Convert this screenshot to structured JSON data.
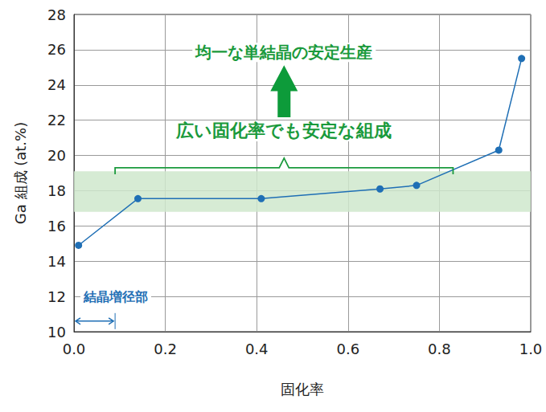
{
  "chart_data": {
    "type": "line",
    "x": [
      0.01,
      0.14,
      0.41,
      0.67,
      0.75,
      0.93,
      0.98
    ],
    "values": [
      14.9,
      17.55,
      17.55,
      18.1,
      18.3,
      20.3,
      25.5
    ],
    "color": "#1f6fb5",
    "marker": "circle",
    "xlabel": "固化率",
    "ylabel": "Ga 組成 (at.%)",
    "xlim": [
      0,
      1
    ],
    "xticks": [
      {
        "value": 0,
        "label": "0.0"
      },
      0.2,
      0.4,
      0.6,
      0.8,
      {
        "value": 1,
        "label": "1.0"
      }
    ],
    "ylim": [
      10,
      28
    ],
    "yticks": [
      10,
      12,
      14,
      16,
      18,
      20,
      22,
      24,
      26,
      28
    ],
    "grid": true,
    "band": {
      "ylim": [
        16.8,
        19.1
      ],
      "color": "#cfe8cc"
    },
    "annotations": [
      {
        "text": "広い固化率でも安定な組成",
        "x_range": [
          0.09,
          0.83
        ],
        "y": 19.3,
        "color": "#1a9a3c"
      },
      {
        "text": "均一な単結晶の安定生産",
        "x": 0.46,
        "y": 25.85,
        "color": "#1a9a3c"
      },
      {
        "text": "結晶増径部",
        "x_range": [
          0,
          0.09
        ],
        "y": 10.6,
        "color": "#1f6fb5"
      }
    ]
  }
}
